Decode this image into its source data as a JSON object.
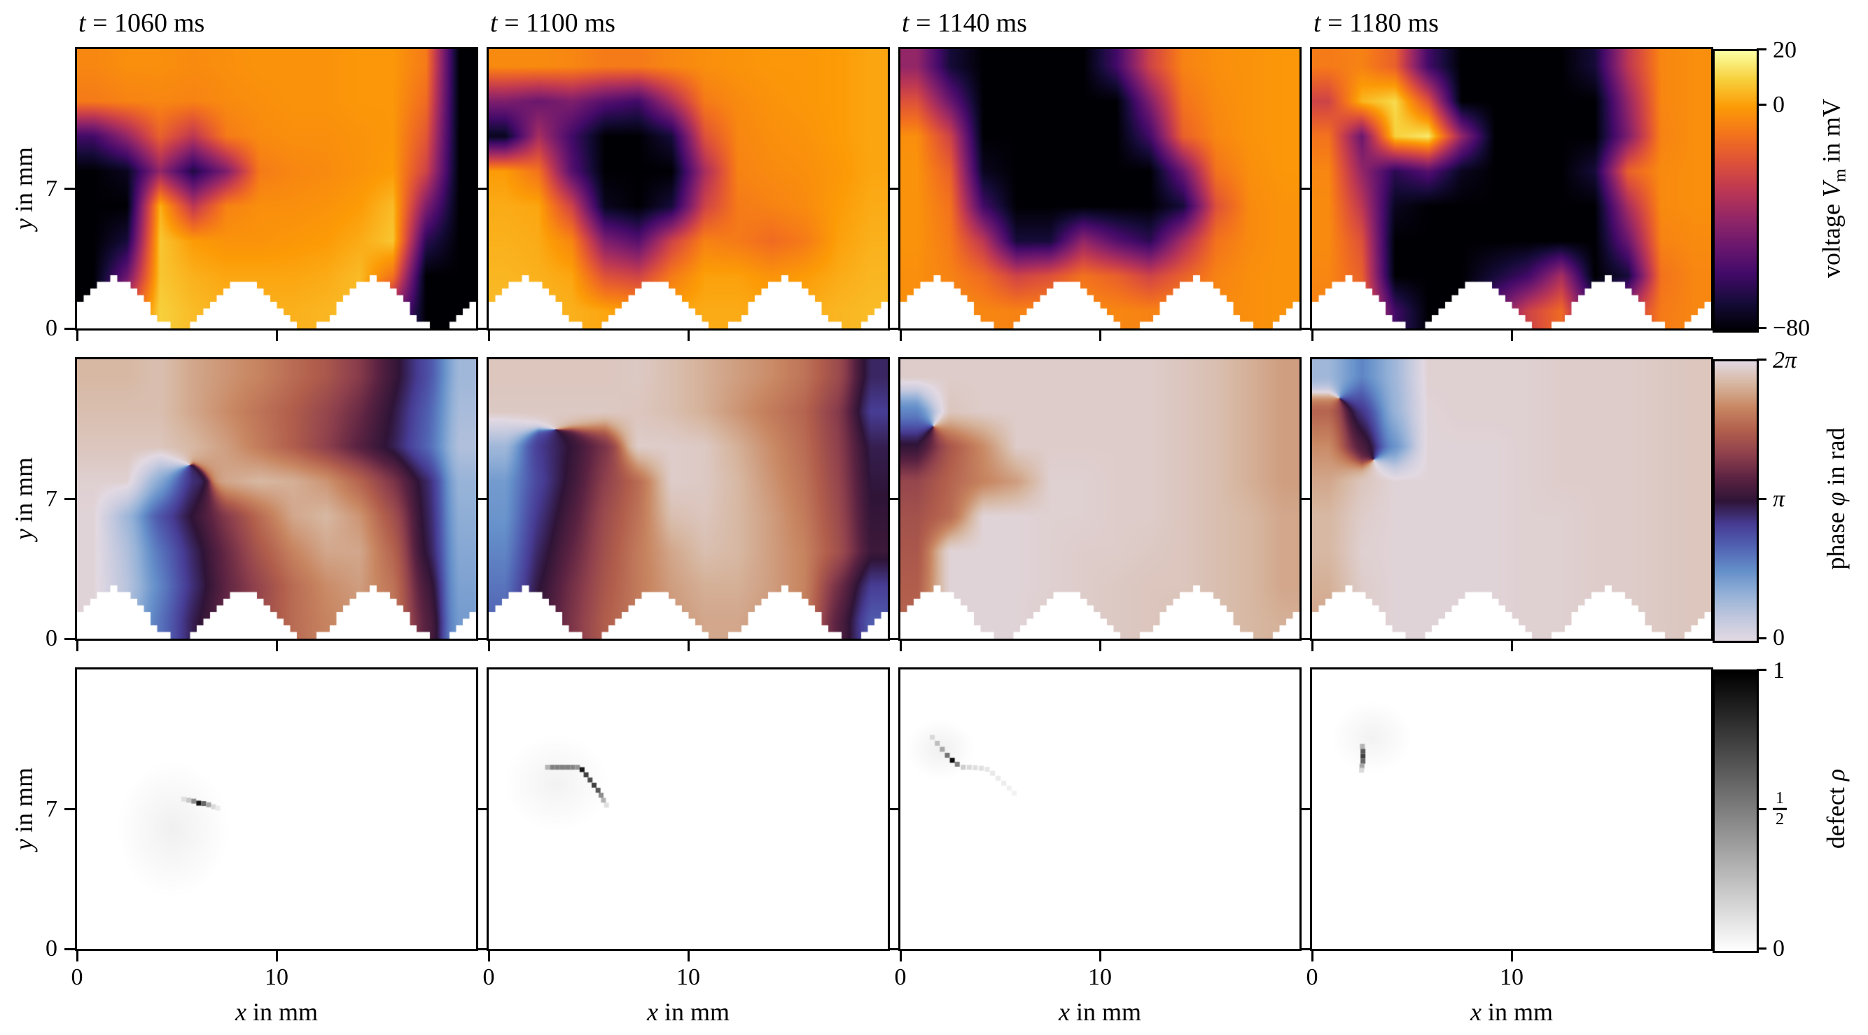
{
  "titles": [
    {
      "var": "t",
      "eq": " = ",
      "value": "1060",
      "unit": "ms"
    },
    {
      "var": "t",
      "eq": " = ",
      "value": "1100",
      "unit": "ms"
    },
    {
      "var": "t",
      "eq": " = ",
      "value": "1140",
      "unit": "ms"
    },
    {
      "var": "t",
      "eq": " = ",
      "value": "1180",
      "unit": "ms"
    }
  ],
  "axes": {
    "x_label": {
      "var": "x",
      "suffix": " in mm"
    },
    "y_label": {
      "var": "y",
      "suffix": " in mm"
    },
    "x_tick_labels": [
      "0",
      "10"
    ],
    "y_tick_labels": [
      "7",
      "0"
    ]
  },
  "colorbars": [
    {
      "prefix": "voltage ",
      "var": "V",
      "sub": "m",
      "suffix": " in mV",
      "tick_top": "20",
      "tick_mid": "0",
      "tick_bottom": "−80"
    },
    {
      "prefix": "phase ",
      "var": "φ",
      "sub": "",
      "suffix": " in rad",
      "tick_top": "2π",
      "tick_mid": "π",
      "tick_bottom": "0"
    },
    {
      "prefix": "defect ",
      "var": "ρ",
      "sub": "",
      "suffix": "",
      "tick_top": "1",
      "tick_mid_num": "1",
      "tick_mid_den": "2",
      "tick_bottom": "0"
    }
  ],
  "chart_data": {
    "type": "heatmap",
    "title": "Spiral wave snapshots: transmembrane voltage, phase and phase-defect fields",
    "columns_time_ms": [
      1060,
      1100,
      1140,
      1180
    ],
    "rows_quantities": [
      {
        "name": "voltage Vm in mV",
        "colormap": "inferno",
        "vmin": -80,
        "vmax": 20,
        "colorbar_ticks": [
          "20",
          "0",
          "−80"
        ]
      },
      {
        "name": "phase phi in rad",
        "colormap": "twilight",
        "vmin": 0,
        "vmax": 6.2832,
        "colorbar_ticks": [
          "2π",
          "π",
          "0"
        ]
      },
      {
        "name": "defect rho",
        "colormap": "greys",
        "vmin": 0,
        "vmax": 1,
        "colorbar_ticks": [
          "1",
          "1/2",
          "0"
        ]
      }
    ],
    "layout": {
      "x_range_mm": [
        0,
        20
      ],
      "y_range_mm": [
        0,
        14
      ],
      "x_ticks_mm": [
        0,
        10
      ],
      "y_ticks_mm": [
        0,
        7
      ],
      "grid_on": false,
      "bottom_mask": {
        "shape": "cosine-teeth",
        "period_mm": 6.5,
        "amplitude_mm": 2.5,
        "first_peak_x_mm": 1.85
      }
    },
    "grid_x_mm": [
      0.83,
      2.5,
      4.17,
      5.83,
      7.5,
      9.17,
      10.83,
      12.5,
      14.17,
      15.83,
      17.5,
      19.17
    ],
    "grid_y_mm": [
      13.13,
      11.38,
      9.63,
      7.88,
      6.13,
      4.38,
      2.63,
      0.88
    ],
    "voltage_grids": {
      "t1060": [
        [
          -5,
          -3,
          -3,
          -4,
          -3,
          -2,
          -2,
          -2,
          -1,
          -1,
          -8,
          -80
        ],
        [
          -8,
          -6,
          -5,
          -6,
          -4,
          -3,
          -2,
          -2,
          -1,
          -1,
          -12,
          -80
        ],
        [
          -60,
          -40,
          -15,
          -30,
          -8,
          -4,
          -3,
          -3,
          -2,
          -1,
          -18,
          -80
        ],
        [
          -80,
          -75,
          -40,
          -68,
          -45,
          -8,
          -5,
          -4,
          -2,
          0,
          -25,
          -80
        ],
        [
          -80,
          -80,
          4,
          -30,
          -6,
          -3,
          -3,
          -2,
          0,
          6,
          -45,
          -80
        ],
        [
          -80,
          -70,
          8,
          0,
          -2,
          -2,
          -1,
          0,
          3,
          8,
          -65,
          -80
        ],
        [
          -80,
          -50,
          8,
          4,
          2,
          2,
          2,
          3,
          6,
          -10,
          -80,
          -80
        ],
        [
          -80,
          -20,
          10,
          6,
          4,
          4,
          4,
          5,
          6,
          -40,
          -80,
          -80
        ]
      ],
      "t1100": [
        [
          -4,
          -4,
          -5,
          -8,
          -8,
          -5,
          -3,
          -2,
          -1,
          -1,
          0,
          2
        ],
        [
          -45,
          -50,
          -45,
          -55,
          -60,
          -35,
          -8,
          -4,
          -2,
          -1,
          0,
          2
        ],
        [
          -75,
          -35,
          -60,
          -80,
          -80,
          -70,
          -20,
          -5,
          -3,
          -2,
          0,
          2
        ],
        [
          0,
          -10,
          -55,
          -80,
          -80,
          -80,
          -35,
          -6,
          -4,
          -3,
          -1,
          2
        ],
        [
          3,
          2,
          -25,
          -75,
          -80,
          -70,
          -25,
          -8,
          -6,
          -4,
          0,
          3
        ],
        [
          4,
          3,
          -5,
          -45,
          -55,
          -25,
          -6,
          -8,
          -12,
          -8,
          1,
          4
        ],
        [
          5,
          4,
          2,
          -20,
          -25,
          -8,
          1,
          1,
          -2,
          0,
          3,
          5
        ],
        [
          6,
          5,
          4,
          2,
          0,
          2,
          3,
          3,
          2,
          3,
          5,
          6
        ]
      ],
      "t1140": [
        [
          -40,
          -70,
          -80,
          -80,
          -80,
          -80,
          -60,
          -25,
          -6,
          -3,
          -2,
          -1
        ],
        [
          -20,
          -50,
          -80,
          -80,
          -80,
          -80,
          -80,
          -45,
          -10,
          -4,
          -2,
          -1
        ],
        [
          -3,
          -25,
          -80,
          -80,
          -80,
          -80,
          -80,
          -60,
          -15,
          -5,
          -2,
          -1
        ],
        [
          -2,
          -15,
          -75,
          -80,
          -80,
          -80,
          -80,
          -80,
          -50,
          -10,
          -3,
          -1
        ],
        [
          -2,
          -10,
          -60,
          -80,
          -80,
          -80,
          -80,
          -80,
          -70,
          -20,
          -4,
          -2
        ],
        [
          -2,
          -8,
          -30,
          -70,
          -70,
          -40,
          -55,
          -65,
          -35,
          -10,
          -4,
          -2
        ],
        [
          -3,
          -6,
          -12,
          -25,
          -20,
          -10,
          -15,
          -25,
          -15,
          -6,
          -3,
          -2
        ],
        [
          -3,
          -4,
          -5,
          -6,
          -5,
          -4,
          -5,
          -6,
          -5,
          -4,
          -3,
          -2
        ]
      ],
      "t1180": [
        [
          -8,
          -6,
          -15,
          -60,
          -80,
          -80,
          -80,
          -80,
          -70,
          -30,
          -5,
          -3
        ],
        [
          -25,
          5,
          12,
          -20,
          -80,
          -80,
          -80,
          -80,
          -80,
          -40,
          -5,
          -3
        ],
        [
          -10,
          -50,
          10,
          15,
          -40,
          -80,
          -80,
          -80,
          -80,
          -45,
          -6,
          -3
        ],
        [
          -5,
          -40,
          -65,
          -55,
          -75,
          -80,
          -80,
          -80,
          -70,
          -15,
          -4,
          -3
        ],
        [
          -4,
          -30,
          -75,
          -80,
          -80,
          -80,
          -80,
          -80,
          -80,
          -35,
          -4,
          -3
        ],
        [
          -4,
          -20,
          -80,
          -80,
          -80,
          -80,
          -80,
          -80,
          -80,
          -50,
          -6,
          -4
        ],
        [
          -5,
          -15,
          -80,
          -80,
          -80,
          -70,
          -60,
          -35,
          -80,
          -70,
          -10,
          -5
        ],
        [
          -6,
          -10,
          -60,
          -80,
          -80,
          -50,
          -25,
          -12,
          -60,
          -30,
          -8,
          -5
        ]
      ]
    },
    "phase_grids": {
      "t1060": [
        [
          5.8,
          5.8,
          5.9,
          5.6,
          5.4,
          5.2,
          4.9,
          4.6,
          4.1,
          3.3,
          2.4,
          0.9
        ],
        [
          5.9,
          5.9,
          5.9,
          5.6,
          5.3,
          5.0,
          4.7,
          4.3,
          3.8,
          3.1,
          2.2,
          0.8
        ],
        [
          6.0,
          6.0,
          6.0,
          5.8,
          5.5,
          5.1,
          4.7,
          4.2,
          3.6,
          3.0,
          2.1,
          0.7
        ],
        [
          6.15,
          6.15,
          1.2,
          2.8,
          5.6,
          5.8,
          5.7,
          5.4,
          4.8,
          4.0,
          2.9,
          1.0
        ],
        [
          6.2,
          0.9,
          2.3,
          3.2,
          4.1,
          4.9,
          5.6,
          5.8,
          5.4,
          4.5,
          3.0,
          1.1
        ],
        [
          6.2,
          0.7,
          1.9,
          2.9,
          3.8,
          4.6,
          5.2,
          5.6,
          5.6,
          4.8,
          3.1,
          1.2
        ],
        [
          6.2,
          0.6,
          1.7,
          2.8,
          3.7,
          4.3,
          4.9,
          5.3,
          5.5,
          5.0,
          3.4,
          1.3
        ],
        [
          6.2,
          0.8,
          1.9,
          3.0,
          3.8,
          4.4,
          4.9,
          5.2,
          5.4,
          5.1,
          3.6,
          1.4
        ]
      ],
      "t1100": [
        [
          6.0,
          6.0,
          6.0,
          6.0,
          6.05,
          5.9,
          5.7,
          5.5,
          5.3,
          5.0,
          4.4,
          2.9
        ],
        [
          6.05,
          6.05,
          6.05,
          6.05,
          6.0,
          5.9,
          5.7,
          5.4,
          5.1,
          4.8,
          4.1,
          2.6
        ],
        [
          0.9,
          2.6,
          3.2,
          4.0,
          6.1,
          6.1,
          6.05,
          5.7,
          5.3,
          4.9,
          4.2,
          3.0
        ],
        [
          1.4,
          2.5,
          3.3,
          4.2,
          4.9,
          6.1,
          6.05,
          5.8,
          5.4,
          5.0,
          4.3,
          3.1
        ],
        [
          1.5,
          2.7,
          3.5,
          4.4,
          5.0,
          5.9,
          6.0,
          5.8,
          5.5,
          5.1,
          4.4,
          3.2
        ],
        [
          1.7,
          2.9,
          3.7,
          4.5,
          5.1,
          5.6,
          5.9,
          5.8,
          5.5,
          5.2,
          4.5,
          3.3
        ],
        [
          1.9,
          3.1,
          3.9,
          4.6,
          5.1,
          5.5,
          5.7,
          5.7,
          5.5,
          5.2,
          3.9,
          2.6
        ],
        [
          2.1,
          3.3,
          4.0,
          4.7,
          5.1,
          5.4,
          5.6,
          5.6,
          5.4,
          5.1,
          3.6,
          2.2
        ]
      ],
      "t1140": [
        [
          6.1,
          6.1,
          6.1,
          6.1,
          6.1,
          6.1,
          6.1,
          6.1,
          6.0,
          5.9,
          5.7,
          5.5
        ],
        [
          1.7,
          6.0,
          6.1,
          6.1,
          6.1,
          6.1,
          6.1,
          6.1,
          6.0,
          5.9,
          5.7,
          5.5
        ],
        [
          3.2,
          4.6,
          5.3,
          6.1,
          6.1,
          6.1,
          6.1,
          6.1,
          6.0,
          5.9,
          5.7,
          5.5
        ],
        [
          4.3,
          4.8,
          5.2,
          5.5,
          6.15,
          6.15,
          6.1,
          6.1,
          6.0,
          5.9,
          5.7,
          5.5
        ],
        [
          4.5,
          4.9,
          6.2,
          6.2,
          6.15,
          6.15,
          6.1,
          6.1,
          6.0,
          5.9,
          5.8,
          5.6
        ],
        [
          4.6,
          6.2,
          6.2,
          6.2,
          6.15,
          6.1,
          6.1,
          6.05,
          6.0,
          5.9,
          5.8,
          5.6
        ],
        [
          4.7,
          6.2,
          6.2,
          6.2,
          6.15,
          6.1,
          6.05,
          6.0,
          6.0,
          5.9,
          5.8,
          5.6
        ],
        [
          4.8,
          6.2,
          6.2,
          6.2,
          6.1,
          6.1,
          6.05,
          6.0,
          5.9,
          5.9,
          5.8,
          5.7
        ]
      ],
      "t1180": [
        [
          0.9,
          1.7,
          0.9,
          6.15,
          6.15,
          6.15,
          6.15,
          6.1,
          6.1,
          6.1,
          6.05,
          6.0
        ],
        [
          4.8,
          2.7,
          1.0,
          6.2,
          6.15,
          6.15,
          6.15,
          6.1,
          6.1,
          6.1,
          6.05,
          6.0
        ],
        [
          5.3,
          3.5,
          1.5,
          6.2,
          6.2,
          6.2,
          6.15,
          6.1,
          6.1,
          6.1,
          6.05,
          6.0
        ],
        [
          5.6,
          6.0,
          6.2,
          6.2,
          6.2,
          6.2,
          6.15,
          6.1,
          6.1,
          6.1,
          6.05,
          6.0
        ],
        [
          5.8,
          6.1,
          6.2,
          6.2,
          6.2,
          6.2,
          6.15,
          6.15,
          6.1,
          6.1,
          6.05,
          6.0
        ],
        [
          5.8,
          6.15,
          6.2,
          6.2,
          6.2,
          6.2,
          6.15,
          6.15,
          6.1,
          6.1,
          6.05,
          6.0
        ],
        [
          5.7,
          6.1,
          6.2,
          6.2,
          6.2,
          6.2,
          6.15,
          6.15,
          6.1,
          6.1,
          6.05,
          6.0
        ],
        [
          5.6,
          6.1,
          6.2,
          6.2,
          6.2,
          6.2,
          6.15,
          6.15,
          6.1,
          6.1,
          6.05,
          6.0
        ]
      ]
    },
    "defect_fields": {
      "t1060": {
        "halo": {
          "cx": 4.8,
          "cy": 6.0,
          "rx": 2.8,
          "ry": 3.4,
          "a": 0.06
        },
        "points": [
          [
            5.35,
            7.5,
            0.12
          ],
          [
            5.6,
            7.45,
            0.22
          ],
          [
            5.85,
            7.4,
            0.45
          ],
          [
            6.1,
            7.3,
            0.92
          ],
          [
            6.35,
            7.28,
            0.6
          ],
          [
            6.6,
            7.22,
            0.35
          ],
          [
            6.85,
            7.12,
            0.15
          ],
          [
            7.05,
            7.05,
            0.08
          ]
        ]
      },
      "t1100": {
        "halo": {
          "cx": 3.4,
          "cy": 8.3,
          "rx": 2.6,
          "ry": 2.4,
          "a": 0.05
        },
        "points": [
          [
            2.95,
            9.1,
            0.3
          ],
          [
            3.2,
            9.1,
            0.5
          ],
          [
            3.45,
            9.1,
            0.5
          ],
          [
            3.7,
            9.1,
            0.5
          ],
          [
            3.95,
            9.1,
            0.5
          ],
          [
            4.2,
            9.1,
            0.48
          ],
          [
            4.45,
            9.1,
            0.42
          ],
          [
            4.68,
            8.98,
            0.9
          ],
          [
            4.88,
            8.72,
            0.75
          ],
          [
            5.08,
            8.46,
            0.7
          ],
          [
            5.28,
            8.2,
            0.75
          ],
          [
            5.48,
            7.95,
            0.65
          ],
          [
            5.63,
            7.7,
            0.45
          ],
          [
            5.75,
            7.45,
            0.3
          ],
          [
            5.9,
            7.2,
            0.12
          ]
        ]
      },
      "t1140": {
        "halo": {
          "cx": 2.0,
          "cy": 10.0,
          "rx": 1.7,
          "ry": 1.5,
          "a": 0.06
        },
        "points": [
          [
            1.6,
            10.6,
            0.15
          ],
          [
            1.85,
            10.3,
            0.25
          ],
          [
            2.1,
            10.0,
            0.35
          ],
          [
            2.35,
            9.7,
            0.55
          ],
          [
            2.6,
            9.45,
            0.95
          ],
          [
            2.85,
            9.25,
            0.5
          ],
          [
            3.15,
            9.1,
            0.2
          ],
          [
            3.45,
            9.1,
            0.15
          ],
          [
            3.75,
            9.08,
            0.13
          ],
          [
            4.05,
            9.05,
            0.12
          ],
          [
            4.35,
            9.0,
            0.1
          ],
          [
            4.62,
            8.8,
            0.09
          ],
          [
            4.9,
            8.55,
            0.08
          ],
          [
            5.18,
            8.3,
            0.07
          ],
          [
            5.45,
            8.05,
            0.06
          ],
          [
            5.7,
            7.8,
            0.05
          ]
        ]
      },
      "t1180": {
        "halo": {
          "cx": 3.0,
          "cy": 10.6,
          "rx": 2.0,
          "ry": 1.8,
          "a": 0.05
        },
        "points": [
          [
            2.52,
            10.15,
            0.3
          ],
          [
            2.55,
            9.9,
            0.65
          ],
          [
            2.55,
            9.65,
            0.75
          ],
          [
            2.55,
            9.4,
            0.6
          ],
          [
            2.5,
            9.15,
            0.35
          ],
          [
            2.48,
            8.95,
            0.15
          ]
        ]
      }
    }
  }
}
